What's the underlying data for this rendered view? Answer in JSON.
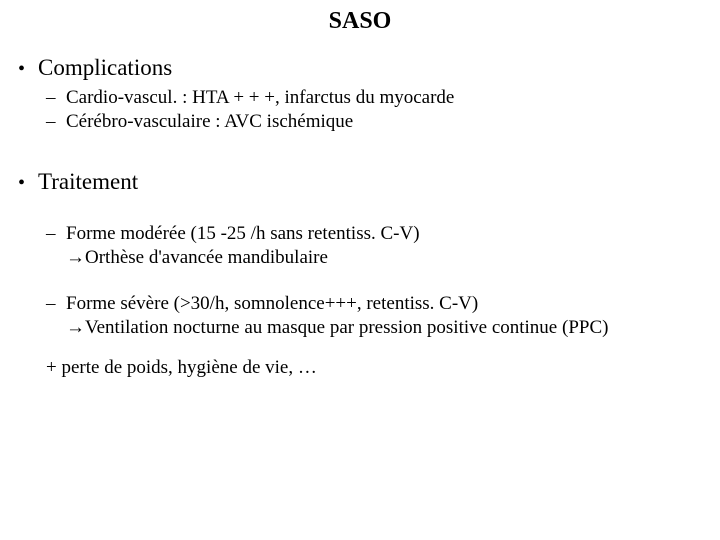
{
  "title": "SASO",
  "section1": {
    "heading": "Complications",
    "items": [
      "Cardio-vascul. :  HTA + + +, infarctus du myocarde",
      "Cérébro-vasculaire : AVC ischémique"
    ]
  },
  "section2": {
    "heading": "Traitement",
    "items": [
      {
        "line": "Forme modérée (15 -25 /h sans retentiss. C-V)",
        "arrow": "→Orthèse  d'avancée mandibulaire"
      },
      {
        "line": "Forme sévère (>30/h, somnolence+++, retentiss. C-V)",
        "arrow": "→Ventilation nocturne au masque par pression positive continue (PPC)"
      }
    ],
    "plus": "+ perte de poids, hygiène de vie, …"
  },
  "style": {
    "background_color": "#ffffff",
    "text_color": "#000000",
    "title_fontsize": 24,
    "l1_fontsize": 23,
    "l2_fontsize": 19,
    "font_family": "Times New Roman"
  }
}
